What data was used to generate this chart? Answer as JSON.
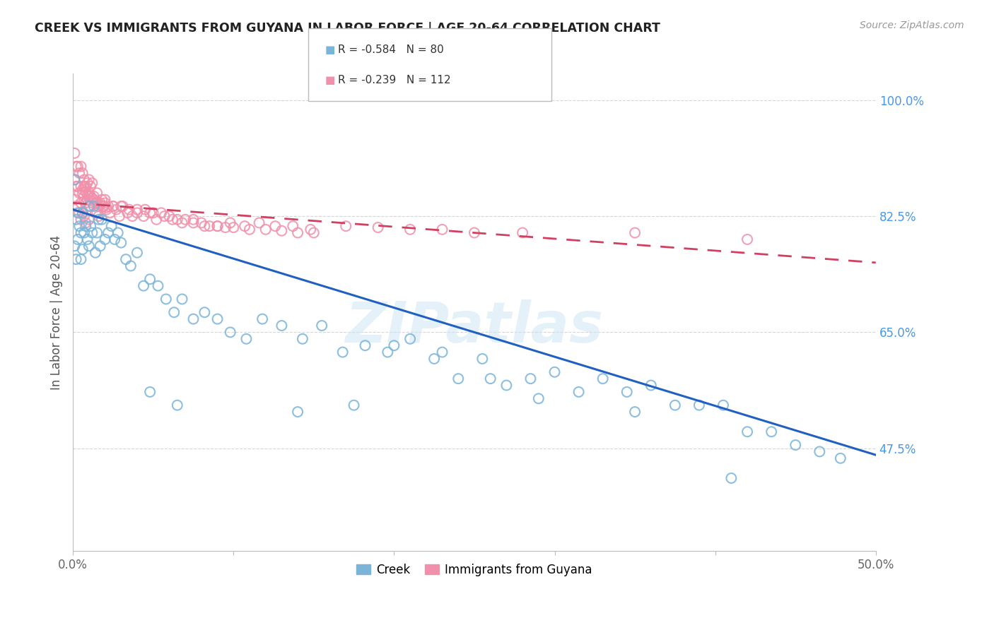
{
  "title": "CREEK VS IMMIGRANTS FROM GUYANA IN LABOR FORCE | AGE 20-64 CORRELATION CHART",
  "source": "Source: ZipAtlas.com",
  "ylabel": "In Labor Force | Age 20-64",
  "xlim": [
    0.0,
    0.5
  ],
  "ylim": [
    0.32,
    1.04
  ],
  "yticks": [
    0.475,
    0.65,
    0.825,
    1.0
  ],
  "ytick_labels": [
    "47.5%",
    "65.0%",
    "82.5%",
    "100.0%"
  ],
  "xticks": [
    0.0,
    0.1,
    0.2,
    0.3,
    0.4,
    0.5
  ],
  "xtick_labels": [
    "0.0%",
    "",
    "",
    "",
    "",
    "50.0%"
  ],
  "creek_R": -0.584,
  "creek_N": 80,
  "guyana_R": -0.239,
  "guyana_N": 112,
  "creek_color": "#7ab4d8",
  "guyana_color": "#f090aa",
  "creek_line_color": "#2060c0",
  "guyana_line_color": "#d04060",
  "watermark": "ZIPatlas",
  "background_color": "#ffffff",
  "grid_color": "#cccccc",
  "creek_trend_x0": 0.0,
  "creek_trend_x1": 0.5,
  "creek_trend_y0": 0.835,
  "creek_trend_y1": 0.465,
  "guyana_trend_x0": 0.0,
  "guyana_trend_x1": 0.5,
  "guyana_trend_y0": 0.845,
  "guyana_trend_y1": 0.755,
  "creek_scatter_x": [
    0.001,
    0.001,
    0.002,
    0.002,
    0.003,
    0.003,
    0.004,
    0.005,
    0.005,
    0.006,
    0.006,
    0.007,
    0.008,
    0.009,
    0.01,
    0.01,
    0.011,
    0.012,
    0.013,
    0.014,
    0.015,
    0.016,
    0.017,
    0.018,
    0.02,
    0.022,
    0.024,
    0.026,
    0.028,
    0.03,
    0.033,
    0.036,
    0.04,
    0.044,
    0.048,
    0.053,
    0.058,
    0.063,
    0.068,
    0.075,
    0.082,
    0.09,
    0.098,
    0.108,
    0.118,
    0.13,
    0.143,
    0.155,
    0.168,
    0.182,
    0.196,
    0.21,
    0.225,
    0.24,
    0.255,
    0.27,
    0.285,
    0.3,
    0.315,
    0.33,
    0.345,
    0.36,
    0.375,
    0.39,
    0.405,
    0.42,
    0.435,
    0.45,
    0.465,
    0.478,
    0.048,
    0.065,
    0.14,
    0.175,
    0.2,
    0.23,
    0.26,
    0.29,
    0.35,
    0.41
  ],
  "creek_scatter_y": [
    0.88,
    0.78,
    0.82,
    0.76,
    0.83,
    0.79,
    0.81,
    0.8,
    0.76,
    0.83,
    0.775,
    0.8,
    0.81,
    0.79,
    0.84,
    0.78,
    0.81,
    0.8,
    0.84,
    0.77,
    0.8,
    0.82,
    0.78,
    0.82,
    0.79,
    0.8,
    0.81,
    0.79,
    0.8,
    0.785,
    0.76,
    0.75,
    0.77,
    0.72,
    0.73,
    0.72,
    0.7,
    0.68,
    0.7,
    0.67,
    0.68,
    0.67,
    0.65,
    0.64,
    0.67,
    0.66,
    0.64,
    0.66,
    0.62,
    0.63,
    0.62,
    0.64,
    0.61,
    0.58,
    0.61,
    0.57,
    0.58,
    0.59,
    0.56,
    0.58,
    0.56,
    0.57,
    0.54,
    0.54,
    0.54,
    0.5,
    0.5,
    0.48,
    0.47,
    0.46,
    0.56,
    0.54,
    0.53,
    0.54,
    0.63,
    0.62,
    0.58,
    0.55,
    0.53,
    0.43
  ],
  "guyana_scatter_x": [
    0.001,
    0.001,
    0.001,
    0.002,
    0.002,
    0.002,
    0.003,
    0.003,
    0.003,
    0.004,
    0.004,
    0.004,
    0.005,
    0.005,
    0.005,
    0.005,
    0.006,
    0.006,
    0.006,
    0.007,
    0.007,
    0.007,
    0.008,
    0.008,
    0.008,
    0.009,
    0.009,
    0.01,
    0.01,
    0.01,
    0.011,
    0.011,
    0.012,
    0.012,
    0.013,
    0.014,
    0.015,
    0.015,
    0.016,
    0.017,
    0.018,
    0.019,
    0.02,
    0.021,
    0.022,
    0.023,
    0.025,
    0.027,
    0.029,
    0.031,
    0.034,
    0.037,
    0.04,
    0.044,
    0.048,
    0.052,
    0.057,
    0.062,
    0.068,
    0.075,
    0.082,
    0.09,
    0.098,
    0.107,
    0.116,
    0.126,
    0.137,
    0.148,
    0.02,
    0.025,
    0.03,
    0.035,
    0.04,
    0.045,
    0.05,
    0.055,
    0.06,
    0.065,
    0.07,
    0.075,
    0.08,
    0.085,
    0.09,
    0.095,
    0.1,
    0.11,
    0.12,
    0.13,
    0.14,
    0.15,
    0.006,
    0.007,
    0.008,
    0.009,
    0.01,
    0.011,
    0.012,
    0.013,
    0.015,
    0.017,
    0.019,
    0.021,
    0.28,
    0.35,
    0.42,
    0.17,
    0.19,
    0.21,
    0.23,
    0.25,
    0.014,
    0.016
  ],
  "guyana_scatter_y": [
    0.92,
    0.88,
    0.85,
    0.9,
    0.87,
    0.84,
    0.9,
    0.87,
    0.84,
    0.89,
    0.86,
    0.83,
    0.9,
    0.87,
    0.845,
    0.82,
    0.89,
    0.86,
    0.83,
    0.88,
    0.855,
    0.825,
    0.87,
    0.845,
    0.815,
    0.875,
    0.85,
    0.88,
    0.855,
    0.82,
    0.87,
    0.84,
    0.875,
    0.845,
    0.855,
    0.845,
    0.86,
    0.83,
    0.84,
    0.845,
    0.85,
    0.84,
    0.845,
    0.835,
    0.84,
    0.83,
    0.84,
    0.835,
    0.825,
    0.84,
    0.83,
    0.825,
    0.83,
    0.825,
    0.83,
    0.82,
    0.825,
    0.82,
    0.815,
    0.82,
    0.81,
    0.81,
    0.815,
    0.81,
    0.815,
    0.81,
    0.81,
    0.805,
    0.85,
    0.84,
    0.84,
    0.835,
    0.835,
    0.835,
    0.83,
    0.83,
    0.825,
    0.82,
    0.82,
    0.815,
    0.815,
    0.81,
    0.81,
    0.808,
    0.808,
    0.805,
    0.805,
    0.803,
    0.8,
    0.8,
    0.865,
    0.87,
    0.862,
    0.858,
    0.86,
    0.855,
    0.852,
    0.85,
    0.845,
    0.842,
    0.84,
    0.838,
    0.8,
    0.8,
    0.79,
    0.81,
    0.808,
    0.805,
    0.805,
    0.8,
    0.83,
    0.825
  ]
}
